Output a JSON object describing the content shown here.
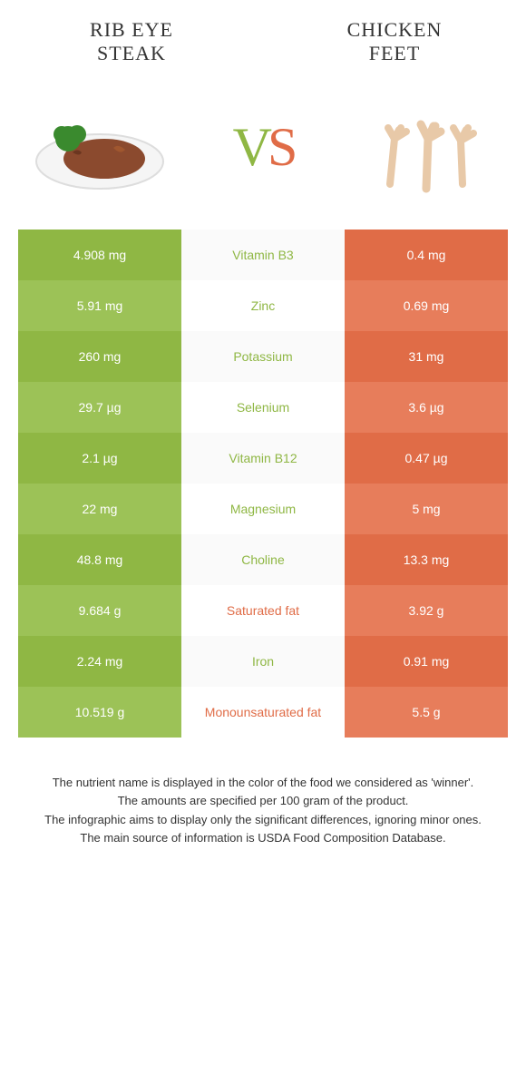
{
  "header": {
    "left_title_line1": "Rib eye",
    "left_title_line2": "steak",
    "right_title_line1": "Chicken",
    "right_title_line2": "feet",
    "vs_v": "V",
    "vs_s": "S"
  },
  "colors": {
    "green_dark": "#8fb744",
    "green_light": "#9cc257",
    "orange_dark": "#e06c47",
    "orange_light": "#e77d5b",
    "mid_grey": "#fafafa",
    "mid_white": "#ffffff"
  },
  "rows": [
    {
      "left": "4.908 mg",
      "name": "Vitamin B3",
      "right": "0.4 mg",
      "winner": "green"
    },
    {
      "left": "5.91 mg",
      "name": "Zinc",
      "right": "0.69 mg",
      "winner": "green"
    },
    {
      "left": "260 mg",
      "name": "Potassium",
      "right": "31 mg",
      "winner": "green"
    },
    {
      "left": "29.7 µg",
      "name": "Selenium",
      "right": "3.6 µg",
      "winner": "green"
    },
    {
      "left": "2.1 µg",
      "name": "Vitamin B12",
      "right": "0.47 µg",
      "winner": "green"
    },
    {
      "left": "22 mg",
      "name": "Magnesium",
      "right": "5 mg",
      "winner": "green"
    },
    {
      "left": "48.8 mg",
      "name": "Choline",
      "right": "13.3 mg",
      "winner": "green"
    },
    {
      "left": "9.684 g",
      "name": "Saturated fat",
      "right": "3.92 g",
      "winner": "orange"
    },
    {
      "left": "2.24 mg",
      "name": "Iron",
      "right": "0.91 mg",
      "winner": "green"
    },
    {
      "left": "10.519 g",
      "name": "Monounsaturated fat",
      "right": "5.5 g",
      "winner": "orange"
    }
  ],
  "footer": {
    "line1": "The nutrient name is displayed in the color of the food we considered as 'winner'.",
    "line2": "The amounts are specified per 100 gram of the product.",
    "line3": "The infographic aims to display only the significant differences, ignoring minor ones.",
    "line4": "The main source of information is USDA Food Composition Database."
  }
}
